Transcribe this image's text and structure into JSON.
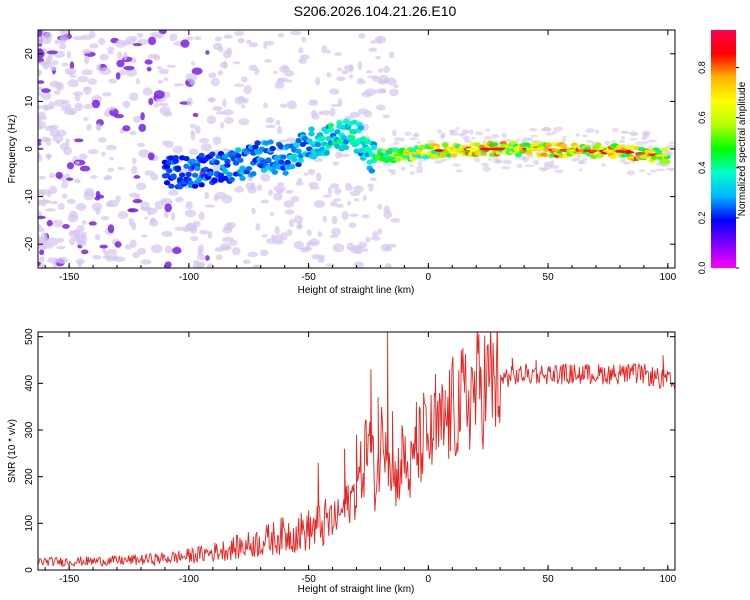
{
  "title": "S206.2026.104.21.26.E10",
  "colors": {
    "trace": "#e8221e",
    "axis": "#000000",
    "background": "#ffffff",
    "speckle_light": "#d6c4f0",
    "speckle_dark": "#7a1fe8"
  },
  "chart_data": [
    {
      "type": "heatmap",
      "title": "",
      "xlabel": "Height of straight line (km)",
      "ylabel": "Frequency (Hz)",
      "xlim": [
        -163,
        103
      ],
      "ylim": [
        -25,
        25
      ],
      "xticks": [
        -150,
        -100,
        -50,
        0,
        50,
        100
      ],
      "yticks": [
        -20,
        -10,
        0,
        10,
        20
      ],
      "colorbar": {
        "label": "Normalized spectral amplitude",
        "range": [
          0,
          0.95
        ],
        "ticks": [
          0.0,
          0.2,
          0.4,
          0.6,
          0.8
        ],
        "colormap": [
          "#ff00ff",
          "#8000ff",
          "#0000ff",
          "#00b4ff",
          "#00ffc8",
          "#00ff00",
          "#b4ff00",
          "#ffff00",
          "#ffb400",
          "#ff0000",
          "#ff0050"
        ]
      },
      "ridge": {
        "x": [
          -110,
          -100,
          -90,
          -80,
          -70,
          -60,
          -50,
          -40,
          -33,
          -28,
          -24,
          -20,
          -10,
          0,
          20,
          40,
          60,
          80,
          90,
          100
        ],
        "frequency": [
          -4.5,
          -5,
          -4,
          -3.5,
          -1.5,
          -2,
          1,
          2.5,
          3,
          2,
          -2,
          -1.5,
          -1.2,
          -0.4,
          0,
          0,
          -0.3,
          -0.5,
          -1,
          -1.5
        ],
        "amplitude": [
          0.18,
          0.2,
          0.22,
          0.25,
          0.26,
          0.28,
          0.32,
          0.38,
          0.42,
          0.35,
          0.4,
          0.5,
          0.65,
          0.75,
          0.82,
          0.78,
          0.85,
          0.88,
          0.8,
          0.7
        ]
      }
    },
    {
      "type": "line",
      "title": "",
      "xlabel": "Height of straight line (km)",
      "ylabel": "SNR (10 * v/v)",
      "xlim": [
        -163,
        103
      ],
      "ylim": [
        0,
        510
      ],
      "xticks": [
        -150,
        -100,
        -50,
        0,
        50,
        100
      ],
      "yticks": [
        0,
        100,
        200,
        300,
        400,
        500
      ],
      "series": [
        {
          "name": "SNR",
          "x": [
            -163,
            -150,
            -140,
            -130,
            -120,
            -110,
            -100,
            -90,
            -80,
            -70,
            -60,
            -50,
            -45,
            -40,
            -35,
            -30,
            -27,
            -25,
            -22,
            -20,
            -18,
            -16,
            -14,
            -12,
            -10,
            -8,
            -5,
            -3,
            0,
            5,
            10,
            15,
            20,
            25,
            30,
            35,
            40,
            45,
            50,
            60,
            70,
            80,
            90,
            100,
            103
          ],
          "values": [
            18,
            18,
            19,
            20,
            22,
            25,
            30,
            38,
            48,
            60,
            75,
            85,
            95,
            105,
            130,
            170,
            230,
            290,
            180,
            260,
            320,
            250,
            190,
            220,
            240,
            200,
            250,
            270,
            280,
            300,
            340,
            360,
            390,
            400,
            410,
            415,
            420,
            420,
            420,
            420,
            420,
            420,
            420,
            405,
            395
          ],
          "spikes": [
            [
              -46,
              230
            ],
            [
              -35,
              260
            ],
            [
              -30,
              290
            ],
            [
              -26,
              320
            ],
            [
              -24,
              430
            ],
            [
              -21,
              370
            ],
            [
              -17,
              510
            ],
            [
              -15,
              340
            ],
            [
              -11,
              310
            ],
            [
              -5,
              360
            ],
            [
              -2,
              380
            ],
            [
              3,
              420
            ],
            [
              7,
              350
            ],
            [
              15,
              380
            ],
            [
              22,
              430
            ],
            [
              35,
              455
            ],
            [
              45,
              450
            ],
            [
              80,
              440
            ],
            [
              98,
              460
            ]
          ]
        }
      ]
    }
  ]
}
